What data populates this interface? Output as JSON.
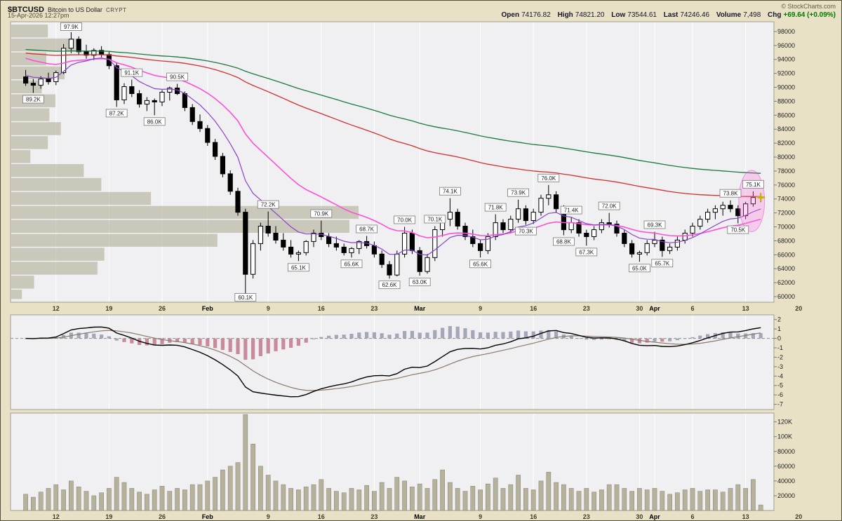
{
  "header": {
    "symbol": "$BTCUSD",
    "title": "Bitcoin to US Dollar",
    "exchange": "CRYPT",
    "credit": "© StockCharts.com",
    "timestamp": "15-Apr-2026 12:27pm",
    "quote": {
      "open_label": "Open",
      "open": "74176.82",
      "high_label": "High",
      "high": "74821.20",
      "low_label": "Low",
      "low": "73544.61",
      "last_label": "Last",
      "last": "74246.46",
      "volume_label": "Volume",
      "volume": "7,498",
      "chg_label": "Chg",
      "chg": "+69.64 (+0.09%)"
    }
  },
  "chart_data": {
    "type": "candlestick",
    "symbol": "$BTCUSD",
    "price_unit": "thousand USD",
    "volume_unit": "thousand shares",
    "price_axis_range": [
      59200,
      99400
    ],
    "price_axis_labels": [
      "98000",
      "96000",
      "94000",
      "92000",
      "90000",
      "88000",
      "86000",
      "84000",
      "82000",
      "80000",
      "78000",
      "76000",
      "74000",
      "72000",
      "70000",
      "68000",
      "66000",
      "64000",
      "62000",
      "60000"
    ],
    "macd_axis_labels": [
      "2",
      "1",
      "0",
      "-1",
      "-2",
      "-3",
      "-4",
      "-5",
      "-6",
      "-7"
    ],
    "volume_axis_labels": [
      {
        "label": "120K",
        "v": 120
      },
      {
        "label": "100K",
        "v": 100
      },
      {
        "label": "80000",
        "v": 80
      },
      {
        "label": "60000",
        "v": 60
      },
      {
        "label": "40000",
        "v": 40
      },
      {
        "label": "20000",
        "v": 20
      }
    ],
    "x_ticks": [
      {
        "label": "12",
        "i": 4
      },
      {
        "label": "19",
        "i": 11
      },
      {
        "label": "26",
        "i": 18
      },
      {
        "label": "Feb",
        "i": 24
      },
      {
        "label": "9",
        "i": 32
      },
      {
        "label": "16",
        "i": 39
      },
      {
        "label": "23",
        "i": 46
      },
      {
        "label": "Mar",
        "i": 52
      },
      {
        "label": "9",
        "i": 60
      },
      {
        "label": "16",
        "i": 67
      },
      {
        "label": "23",
        "i": 74
      },
      {
        "label": "30",
        "i": 81
      },
      {
        "label": "Apr",
        "i": 83
      },
      {
        "label": "6",
        "i": 88
      },
      {
        "label": "13",
        "i": 95
      },
      {
        "label": "20",
        "i": 102
      }
    ],
    "candles": [
      [
        91.5,
        92.5,
        90.2,
        90.6,
        22
      ],
      [
        90.6,
        91.2,
        89.2,
        90.3,
        18
      ],
      [
        90.3,
        91.6,
        89.8,
        91.2,
        25
      ],
      [
        91.2,
        92.1,
        90.4,
        90.8,
        30
      ],
      [
        90.8,
        92.4,
        90.3,
        92.1,
        35
      ],
      [
        92.1,
        96.2,
        91.9,
        95.6,
        28
      ],
      [
        95.6,
        97.9,
        94.9,
        96.9,
        40
      ],
      [
        96.9,
        97.3,
        94.6,
        95.1,
        32
      ],
      [
        95.1,
        96.1,
        94.1,
        94.6,
        26
      ],
      [
        94.6,
        95.6,
        93.9,
        95.3,
        20
      ],
      [
        95.3,
        95.9,
        94.3,
        94.7,
        24
      ],
      [
        94.7,
        95.1,
        92.6,
        93.1,
        30
      ],
      [
        93.1,
        93.6,
        87.2,
        88.2,
        45
      ],
      [
        88.2,
        90.6,
        87.6,
        90.1,
        38
      ],
      [
        90.1,
        91.1,
        88.6,
        89.1,
        30
      ],
      [
        89.1,
        89.6,
        87.1,
        87.6,
        25
      ],
      [
        87.6,
        88.6,
        86.6,
        88.1,
        22
      ],
      [
        88.1,
        88.4,
        86.0,
        87.9,
        28
      ],
      [
        87.9,
        89.6,
        87.3,
        89.3,
        33
      ],
      [
        89.3,
        90.1,
        88.1,
        89.9,
        26
      ],
      [
        89.9,
        90.5,
        88.9,
        89.1,
        30
      ],
      [
        89.1,
        89.4,
        86.6,
        87.1,
        28
      ],
      [
        87.1,
        87.6,
        84.6,
        85.1,
        35
      ],
      [
        85.1,
        86.1,
        83.6,
        84.1,
        35
      ],
      [
        84.1,
        84.6,
        81.6,
        82.1,
        40
      ],
      [
        82.1,
        82.6,
        79.6,
        80.1,
        45
      ],
      [
        80.1,
        80.6,
        77.1,
        77.6,
        55
      ],
      [
        77.6,
        78.1,
        74.6,
        75.1,
        60
      ],
      [
        75.1,
        75.6,
        71.6,
        72.1,
        65
      ],
      [
        72.1,
        72.6,
        60.1,
        63.2,
        130
      ],
      [
        63.2,
        68.1,
        62.6,
        67.6,
        90
      ],
      [
        67.6,
        70.6,
        66.6,
        70.1,
        60
      ],
      [
        70.1,
        72.2,
        68.6,
        69.1,
        48
      ],
      [
        69.1,
        70.1,
        67.6,
        68.1,
        40
      ],
      [
        68.1,
        69.1,
        66.6,
        67.1,
        35
      ],
      [
        67.1,
        68.1,
        65.6,
        66.1,
        30
      ],
      [
        66.1,
        66.6,
        65.1,
        66.3,
        28
      ],
      [
        66.3,
        68.1,
        65.9,
        67.9,
        32
      ],
      [
        67.9,
        69.6,
        67.1,
        69.1,
        35
      ],
      [
        69.1,
        70.9,
        68.1,
        68.6,
        42
      ],
      [
        68.6,
        69.1,
        67.1,
        67.6,
        30
      ],
      [
        67.6,
        68.6,
        66.6,
        67.1,
        26
      ],
      [
        67.1,
        67.6,
        65.9,
        66.3,
        24
      ],
      [
        66.3,
        67.1,
        65.6,
        66.9,
        30
      ],
      [
        66.9,
        68.1,
        66.1,
        67.9,
        28
      ],
      [
        67.9,
        68.7,
        66.9,
        67.3,
        34
      ],
      [
        67.3,
        67.9,
        65.6,
        66.1,
        26
      ],
      [
        66.1,
        66.6,
        64.1,
        64.6,
        38
      ],
      [
        64.6,
        65.1,
        62.6,
        63.1,
        30
      ],
      [
        63.1,
        66.6,
        62.9,
        66.1,
        45
      ],
      [
        66.1,
        70.0,
        65.6,
        69.1,
        40
      ],
      [
        69.1,
        69.6,
        66.1,
        66.6,
        32
      ],
      [
        66.6,
        67.1,
        63.0,
        63.6,
        36
      ],
      [
        63.6,
        66.1,
        63.3,
        65.6,
        30
      ],
      [
        65.6,
        70.1,
        65.1,
        69.6,
        42
      ],
      [
        69.6,
        71.6,
        68.6,
        71.1,
        55
      ],
      [
        71.1,
        74.1,
        70.1,
        72.1,
        38
      ],
      [
        72.1,
        72.6,
        69.6,
        70.1,
        30
      ],
      [
        70.1,
        70.6,
        68.1,
        68.6,
        26
      ],
      [
        68.6,
        69.6,
        67.1,
        67.6,
        33
      ],
      [
        67.6,
        68.1,
        65.6,
        66.6,
        28
      ],
      [
        66.6,
        69.1,
        66.1,
        68.6,
        36
      ],
      [
        68.6,
        71.8,
        68.1,
        70.6,
        44
      ],
      [
        70.6,
        71.1,
        69.1,
        69.6,
        30
      ],
      [
        69.6,
        71.6,
        69.1,
        71.1,
        35
      ],
      [
        71.1,
        73.9,
        70.6,
        72.6,
        48
      ],
      [
        72.6,
        73.1,
        70.3,
        70.9,
        30
      ],
      [
        70.9,
        72.6,
        70.4,
        72.1,
        28
      ],
      [
        72.1,
        74.6,
        71.6,
        74.1,
        40
      ],
      [
        74.1,
        76.0,
        73.1,
        74.6,
        52
      ],
      [
        74.6,
        75.1,
        72.1,
        72.6,
        38
      ],
      [
        72.6,
        73.1,
        68.8,
        69.6,
        35
      ],
      [
        69.6,
        71.4,
        69.1,
        70.6,
        30
      ],
      [
        70.6,
        71.1,
        68.6,
        69.1,
        26
      ],
      [
        69.1,
        69.6,
        67.3,
        68.6,
        30
      ],
      [
        68.6,
        70.1,
        68.1,
        69.6,
        25
      ],
      [
        69.6,
        71.1,
        69.1,
        70.6,
        28
      ],
      [
        70.6,
        72.0,
        69.9,
        70.4,
        35
      ],
      [
        70.4,
        70.9,
        68.6,
        69.1,
        35
      ],
      [
        69.1,
        69.6,
        67.1,
        67.6,
        30
      ],
      [
        67.6,
        68.1,
        65.6,
        66.1,
        26
      ],
      [
        66.1,
        66.6,
        65.0,
        66.3,
        30
      ],
      [
        66.3,
        68.1,
        65.9,
        67.6,
        28
      ],
      [
        67.6,
        69.3,
        67.1,
        68.1,
        30
      ],
      [
        68.1,
        68.6,
        65.7,
        66.6,
        26
      ],
      [
        66.6,
        67.6,
        66.1,
        67.1,
        22
      ],
      [
        67.1,
        68.6,
        66.6,
        68.1,
        24
      ],
      [
        68.1,
        69.6,
        67.6,
        69.1,
        28
      ],
      [
        69.1,
        70.6,
        68.6,
        70.1,
        30
      ],
      [
        70.1,
        71.6,
        69.6,
        71.1,
        26
      ],
      [
        71.1,
        72.6,
        70.6,
        72.1,
        28
      ],
      [
        72.1,
        73.1,
        71.1,
        72.6,
        28
      ],
      [
        72.6,
        73.6,
        71.6,
        73.1,
        25
      ],
      [
        73.1,
        73.8,
        72.1,
        72.6,
        30
      ],
      [
        72.6,
        73.1,
        70.5,
        71.6,
        35
      ],
      [
        71.6,
        73.6,
        71.1,
        73.3,
        30
      ],
      [
        73.3,
        75.1,
        72.9,
        74.2,
        42
      ],
      [
        74.18,
        74.82,
        73.54,
        74.25,
        7.5
      ]
    ],
    "overlays": [
      {
        "name": "ma-long-green",
        "color": "#1a7a40",
        "alpha": 0.015,
        "seed": 95.5,
        "w": 1.3
      },
      {
        "name": "ma-medium-red",
        "color": "#d03030",
        "alpha": 0.022,
        "seed": 95.0,
        "w": 1.3
      },
      {
        "name": "ma-short-magenta",
        "color": "#ff4fd8",
        "alpha": 0.085,
        "seed": 94.5,
        "w": 1.6
      },
      {
        "name": "ma-short-purple",
        "color": "#8844cc",
        "alpha": 0.2,
        "seed": 92.0,
        "w": 1.2
      }
    ],
    "macd": {
      "fast": 12,
      "slow": 26,
      "signal": 9,
      "line_color": "#000000",
      "signal_color": "#8a7a6a",
      "hist_pos_color": "#a3a7b8",
      "hist_neg_color": "#c98a9a"
    },
    "volume_color": "#b5b19a",
    "vbp": [
      {
        "p_low": 97,
        "p_high": 99,
        "frac": 0.048
      },
      {
        "p_low": 95,
        "p_high": 97,
        "frac": 0.084
      },
      {
        "p_low": 93,
        "p_high": 95,
        "frac": 0.046
      },
      {
        "p_low": 91,
        "p_high": 93,
        "frac": 0.07
      },
      {
        "p_low": 89,
        "p_high": 91,
        "frac": 0.04
      },
      {
        "p_low": 87,
        "p_high": 89,
        "frac": 0.058
      },
      {
        "p_low": 85,
        "p_high": 87,
        "frac": 0.05
      },
      {
        "p_low": 83,
        "p_high": 85,
        "frac": 0.065
      },
      {
        "p_low": 81,
        "p_high": 83,
        "frac": 0.048
      },
      {
        "p_low": 79,
        "p_high": 81,
        "frac": 0.025
      },
      {
        "p_low": 77,
        "p_high": 79,
        "frac": 0.095
      },
      {
        "p_low": 75,
        "p_high": 77,
        "frac": 0.118
      },
      {
        "p_low": 73,
        "p_high": 75,
        "frac": 0.183
      },
      {
        "p_low": 71,
        "p_high": 73,
        "frac": 0.455
      },
      {
        "p_low": 69,
        "p_high": 71,
        "frac": 0.443
      },
      {
        "p_low": 67,
        "p_high": 69,
        "frac": 0.27
      },
      {
        "p_low": 65,
        "p_high": 67,
        "frac": 0.122
      },
      {
        "p_low": 63,
        "p_high": 65,
        "frac": 0.113
      },
      {
        "p_low": 61,
        "p_high": 63,
        "frac": 0.03
      },
      {
        "p_low": 59.5,
        "p_high": 61,
        "frac": 0.014
      }
    ],
    "annotations": {
      "price_labels": [
        {
          "text": "89.2K",
          "i": 1,
          "side": "below"
        },
        {
          "text": "97.9K",
          "i": 6,
          "side": "above"
        },
        {
          "text": "87.2K",
          "i": 12,
          "side": "below"
        },
        {
          "text": "91.1K",
          "i": 14,
          "side": "above"
        },
        {
          "text": "86.0K",
          "i": 17,
          "side": "below"
        },
        {
          "text": "90.5K",
          "i": 20,
          "side": "above"
        },
        {
          "text": "60.1K",
          "i": 29,
          "side": "below"
        },
        {
          "text": "72.2K",
          "i": 32,
          "side": "above"
        },
        {
          "text": "65.1K",
          "i": 36,
          "side": "below"
        },
        {
          "text": "70.9K",
          "i": 39,
          "side": "above"
        },
        {
          "text": "65.6K",
          "i": 43,
          "side": "below"
        },
        {
          "text": "68.7K",
          "i": 45,
          "side": "above"
        },
        {
          "text": "62.6K",
          "i": 48,
          "side": "below"
        },
        {
          "text": "70.0K",
          "i": 50,
          "side": "above"
        },
        {
          "text": "63.0K",
          "i": 52,
          "side": "below"
        },
        {
          "text": "70.1K",
          "i": 54,
          "side": "above"
        },
        {
          "text": "74.1K",
          "i": 56,
          "side": "above"
        },
        {
          "text": "65.6K",
          "i": 60,
          "side": "below"
        },
        {
          "text": "71.8K",
          "i": 62,
          "side": "above"
        },
        {
          "text": "73.9K",
          "i": 65,
          "side": "above"
        },
        {
          "text": "70.3K",
          "i": 66,
          "side": "below"
        },
        {
          "text": "76.0K",
          "i": 69,
          "side": "above"
        },
        {
          "text": "68.8K",
          "i": 71,
          "side": "below"
        },
        {
          "text": "71.4K",
          "i": 72,
          "side": "above"
        },
        {
          "text": "67.3K",
          "i": 74,
          "side": "below"
        },
        {
          "text": "72.0K",
          "i": 77,
          "side": "above"
        },
        {
          "text": "65.0K",
          "i": 81,
          "side": "below"
        },
        {
          "text": "69.3K",
          "i": 83,
          "side": "above"
        },
        {
          "text": "65.7K",
          "i": 84,
          "side": "below"
        },
        {
          "text": "73.8K",
          "i": 93,
          "side": "above"
        },
        {
          "text": "70.5K",
          "i": 94,
          "side": "below"
        },
        {
          "text": "75.1K",
          "i": 96,
          "side": "above"
        }
      ],
      "ellipse": {
        "i": 95.8,
        "price": 73.7,
        "rx_slots": 1.7,
        "ry_price": 4.4,
        "fill": "rgba(255,110,220,0.28)",
        "stroke": "rgba(230,60,190,0.45)"
      },
      "cross": {
        "i": 97,
        "price": 74.25,
        "color": "#c8b400"
      }
    }
  }
}
